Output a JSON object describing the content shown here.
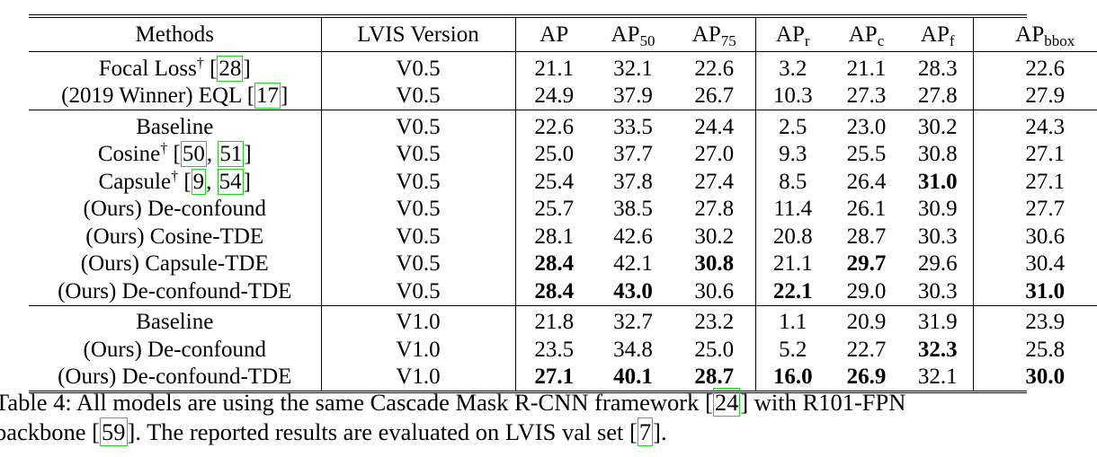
{
  "table": {
    "headers": [
      {
        "main": "Methods",
        "sub": ""
      },
      {
        "main": "LVIS Version",
        "sub": ""
      },
      {
        "main": "AP",
        "sub": ""
      },
      {
        "main": "AP",
        "sub": "50"
      },
      {
        "main": "AP",
        "sub": "75"
      },
      {
        "main": "AP",
        "sub": "r"
      },
      {
        "main": "AP",
        "sub": "c"
      },
      {
        "main": "AP",
        "sub": "f"
      },
      {
        "main": "AP",
        "sub": "bbox"
      }
    ],
    "groups": [
      {
        "rows": [
          {
            "method": "Focal Loss",
            "dagger": "†",
            "refs": [
              "28"
            ],
            "version": "V0.5",
            "values": [
              "21.1",
              "32.1",
              "22.6",
              "3.2",
              "21.1",
              "28.3",
              "22.6"
            ],
            "bold": []
          },
          {
            "method": "(2019 Winner) EQL",
            "dagger": "",
            "refs": [
              "17"
            ],
            "version": "V0.5",
            "values": [
              "24.9",
              "37.9",
              "26.7",
              "10.3",
              "27.3",
              "27.8",
              "27.9"
            ],
            "bold": []
          }
        ]
      },
      {
        "rows": [
          {
            "method": "Baseline",
            "dagger": "",
            "refs": [],
            "version": "V0.5",
            "values": [
              "22.6",
              "33.5",
              "24.4",
              "2.5",
              "23.0",
              "30.2",
              "24.3"
            ],
            "bold": []
          },
          {
            "method": "Cosine",
            "dagger": "†",
            "refs": [
              "50",
              "51"
            ],
            "version": "V0.5",
            "values": [
              "25.0",
              "37.7",
              "27.0",
              "9.3",
              "25.5",
              "30.8",
              "27.1"
            ],
            "bold": []
          },
          {
            "method": "Capsule",
            "dagger": "†",
            "refs": [
              "9",
              "54"
            ],
            "version": "V0.5",
            "values": [
              "25.4",
              "37.8",
              "27.4",
              "8.5",
              "26.4",
              "31.0",
              "27.1"
            ],
            "bold": [
              5
            ]
          },
          {
            "method": "(Ours) De-confound",
            "dagger": "",
            "refs": [],
            "version": "V0.5",
            "values": [
              "25.7",
              "38.5",
              "27.8",
              "11.4",
              "26.1",
              "30.9",
              "27.7"
            ],
            "bold": []
          },
          {
            "method": "(Ours) Cosine-TDE",
            "dagger": "",
            "refs": [],
            "version": "V0.5",
            "values": [
              "28.1",
              "42.6",
              "30.2",
              "20.8",
              "28.7",
              "30.3",
              "30.6"
            ],
            "bold": []
          },
          {
            "method": "(Ours) Capsule-TDE",
            "dagger": "",
            "refs": [],
            "version": "V0.5",
            "values": [
              "28.4",
              "42.1",
              "30.8",
              "21.1",
              "29.7",
              "29.6",
              "30.4"
            ],
            "bold": [
              0,
              2,
              4
            ]
          },
          {
            "method": "(Ours) De-confound-TDE",
            "dagger": "",
            "refs": [],
            "version": "V0.5",
            "values": [
              "28.4",
              "43.0",
              "30.6",
              "22.1",
              "29.0",
              "30.3",
              "31.0"
            ],
            "bold": [
              0,
              1,
              3,
              6
            ]
          }
        ]
      },
      {
        "rows": [
          {
            "method": "Baseline",
            "dagger": "",
            "refs": [],
            "version": "V1.0",
            "values": [
              "21.8",
              "32.7",
              "23.2",
              "1.1",
              "20.9",
              "31.9",
              "23.9"
            ],
            "bold": []
          },
          {
            "method": "(Ours) De-confound",
            "dagger": "",
            "refs": [],
            "version": "V1.0",
            "values": [
              "23.5",
              "34.8",
              "25.0",
              "5.2",
              "22.7",
              "32.3",
              "25.8"
            ],
            "bold": [
              5
            ]
          },
          {
            "method": "(Ours) De-confound-TDE",
            "dagger": "",
            "refs": [],
            "version": "V1.0",
            "values": [
              "27.1",
              "40.1",
              "28.7",
              "16.0",
              "26.9",
              "32.1",
              "30.0"
            ],
            "bold": [
              0,
              1,
              2,
              3,
              4,
              6
            ]
          }
        ]
      }
    ]
  },
  "caption": {
    "segments_line1": [
      {
        "text": "Table 4: All models are using the same Cascade Mask R-CNN framework "
      },
      {
        "ref": "24"
      },
      {
        "text": " with R101-FPN"
      }
    ],
    "segments_line2": [
      {
        "text": "backbone "
      },
      {
        "ref": "59"
      },
      {
        "text": ". The reported results are evaluated on LVIS val set "
      },
      {
        "ref": "7"
      },
      {
        "text": "."
      }
    ]
  }
}
